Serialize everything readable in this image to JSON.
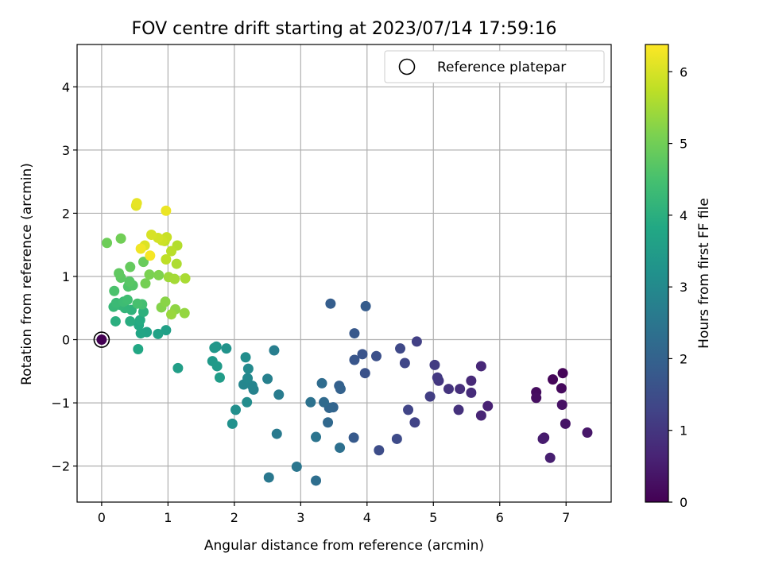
{
  "chart_data": {
    "type": "scatter",
    "title": "FOV centre drift starting at 2023/07/14 17:59:16",
    "xlabel": "Angular distance from reference (arcmin)",
    "ylabel": "Rotation from reference (arcmin)",
    "xlim": [
      -0.37,
      7.68
    ],
    "ylim": [
      -2.57,
      4.67
    ],
    "xticks": [
      0,
      1,
      2,
      3,
      4,
      5,
      6,
      7
    ],
    "yticks": [
      -2,
      -1,
      0,
      1,
      2,
      3,
      4
    ],
    "x_tick_labels": [
      "0",
      "1",
      "2",
      "3",
      "4",
      "5",
      "6",
      "7"
    ],
    "y_tick_labels": [
      "−2",
      "−1",
      "0",
      "1",
      "2",
      "3",
      "4"
    ],
    "grid": true,
    "legend_position": "top-right",
    "legend": [
      {
        "label": "Reference platepar",
        "marker": "open-circle"
      }
    ],
    "reference_point": {
      "x": 0,
      "y": 0
    },
    "colorbar": {
      "label": "Hours from first FF file",
      "min": 0,
      "max": 6.38,
      "ticks": [
        0,
        1,
        2,
        3,
        4,
        5,
        6
      ],
      "tick_labels": [
        "0",
        "1",
        "2",
        "3",
        "4",
        "5",
        "6"
      ],
      "colormap": "viridis"
    },
    "points": [
      [
        6.95,
        -0.53,
        0.05
      ],
      [
        6.8,
        -0.63,
        0.1
      ],
      [
        6.93,
        -0.77,
        0.15
      ],
      [
        6.55,
        -0.83,
        0.2
      ],
      [
        6.55,
        -0.92,
        0.25
      ],
      [
        6.94,
        -1.03,
        0.3
      ],
      [
        6.99,
        -1.33,
        0.35
      ],
      [
        7.32,
        -1.47,
        0.4
      ],
      [
        6.67,
        -1.55,
        0.45
      ],
      [
        6.65,
        -1.57,
        0.5
      ],
      [
        6.76,
        -1.87,
        0.55
      ],
      [
        5.82,
        -1.05,
        0.6
      ],
      [
        5.72,
        -1.2,
        0.65
      ],
      [
        5.72,
        -0.42,
        0.7
      ],
      [
        5.57,
        -0.65,
        0.75
      ],
      [
        5.57,
        -0.84,
        0.8
      ],
      [
        5.4,
        -0.78,
        0.85
      ],
      [
        5.38,
        -1.11,
        0.9
      ],
      [
        5.23,
        -0.78,
        0.95
      ],
      [
        5.08,
        -0.65,
        1.0
      ],
      [
        5.06,
        -0.6,
        1.05
      ],
      [
        5.02,
        -0.4,
        1.1
      ],
      [
        4.95,
        -0.9,
        1.15
      ],
      [
        4.75,
        -0.03,
        1.2
      ],
      [
        4.72,
        -1.31,
        1.25
      ],
      [
        4.62,
        -1.11,
        1.3
      ],
      [
        4.57,
        -0.37,
        1.35
      ],
      [
        4.5,
        -0.14,
        1.4
      ],
      [
        4.45,
        -1.57,
        1.45
      ],
      [
        4.18,
        -1.75,
        1.5
      ],
      [
        4.14,
        -0.26,
        1.55
      ],
      [
        3.97,
        -0.53,
        1.6
      ],
      [
        3.93,
        -0.23,
        1.65
      ],
      [
        3.81,
        -0.32,
        1.7
      ],
      [
        3.81,
        0.1,
        1.75
      ],
      [
        3.8,
        -1.55,
        1.8
      ],
      [
        3.98,
        0.53,
        1.85
      ],
      [
        3.45,
        0.57,
        1.9
      ],
      [
        3.58,
        -0.73,
        1.95
      ],
      [
        3.6,
        -0.78,
        2.0
      ],
      [
        3.49,
        -1.07,
        2.05
      ],
      [
        3.43,
        -1.08,
        2.1
      ],
      [
        3.41,
        -1.31,
        2.15
      ],
      [
        3.35,
        -0.99,
        2.2
      ],
      [
        3.32,
        -0.69,
        2.25
      ],
      [
        3.23,
        -2.23,
        2.3
      ],
      [
        3.59,
        -1.71,
        2.35
      ],
      [
        3.15,
        -0.99,
        2.4
      ],
      [
        3.23,
        -1.54,
        2.45
      ],
      [
        2.94,
        -2.01,
        2.5
      ],
      [
        2.52,
        -2.18,
        2.55
      ],
      [
        2.64,
        -1.49,
        2.6
      ],
      [
        2.67,
        -0.87,
        2.65
      ],
      [
        2.6,
        -0.17,
        2.7
      ],
      [
        2.5,
        -0.62,
        2.75
      ],
      [
        2.29,
        -0.79,
        2.8
      ],
      [
        2.27,
        -0.73,
        2.85
      ],
      [
        2.14,
        -0.71,
        2.9
      ],
      [
        2.2,
        -0.61,
        2.95
      ],
      [
        2.21,
        -0.46,
        3.0
      ],
      [
        2.19,
        -0.99,
        3.05
      ],
      [
        2.17,
        -0.28,
        3.1
      ],
      [
        2.02,
        -1.11,
        3.15
      ],
      [
        1.97,
        -1.33,
        3.2
      ],
      [
        1.88,
        -0.14,
        3.25
      ],
      [
        1.73,
        -0.11,
        3.3
      ],
      [
        1.7,
        -0.13,
        3.35
      ],
      [
        1.67,
        -0.34,
        3.4
      ],
      [
        1.74,
        -0.42,
        3.45
      ],
      [
        1.78,
        -0.6,
        3.5
      ],
      [
        1.15,
        -0.45,
        3.55
      ],
      [
        0.97,
        0.15,
        3.6
      ],
      [
        0.85,
        0.09,
        3.65
      ],
      [
        0.68,
        0.12,
        3.7
      ],
      [
        0.59,
        0.1,
        3.75
      ],
      [
        0.55,
        -0.15,
        3.8
      ],
      [
        0.56,
        0.23,
        3.85
      ],
      [
        0.58,
        0.31,
        3.9
      ],
      [
        0.43,
        0.29,
        3.95
      ],
      [
        0.21,
        0.29,
        4.0
      ],
      [
        0.63,
        0.44,
        4.05
      ],
      [
        0.45,
        0.47,
        4.1
      ],
      [
        0.35,
        0.5,
        4.15
      ],
      [
        0.28,
        0.55,
        4.2
      ],
      [
        0.18,
        0.52,
        4.25
      ],
      [
        0.22,
        0.58,
        4.3
      ],
      [
        0.33,
        0.6,
        4.35
      ],
      [
        0.39,
        0.63,
        4.4
      ],
      [
        0.61,
        0.56,
        4.45
      ],
      [
        0.54,
        0.57,
        4.5
      ],
      [
        0.19,
        0.77,
        4.55
      ],
      [
        0.4,
        0.84,
        4.6
      ],
      [
        0.47,
        0.86,
        4.65
      ],
      [
        0.42,
        0.92,
        4.7
      ],
      [
        0.29,
        0.98,
        4.75
      ],
      [
        0.26,
        1.05,
        4.8
      ],
      [
        0.43,
        1.15,
        4.85
      ],
      [
        0.63,
        1.23,
        4.9
      ],
      [
        0.08,
        1.53,
        4.95
      ],
      [
        0.29,
        1.6,
        5.0
      ],
      [
        0.66,
        0.89,
        5.05
      ],
      [
        0.72,
        1.03,
        5.1
      ],
      [
        0.86,
        1.02,
        5.15
      ],
      [
        0.9,
        0.51,
        5.2
      ],
      [
        0.96,
        0.6,
        5.25
      ],
      [
        1.11,
        0.48,
        5.3
      ],
      [
        1.25,
        0.42,
        5.35
      ],
      [
        1.05,
        0.4,
        5.4
      ],
      [
        1.01,
        0.99,
        5.45
      ],
      [
        1.1,
        0.96,
        5.5
      ],
      [
        1.26,
        0.97,
        5.55
      ],
      [
        1.13,
        1.2,
        5.6
      ],
      [
        1.14,
        1.49,
        5.65
      ],
      [
        1.05,
        1.4,
        5.7
      ],
      [
        0.97,
        1.27,
        5.75
      ],
      [
        0.95,
        1.56,
        5.8
      ],
      [
        0.98,
        1.62,
        5.85
      ],
      [
        0.91,
        1.57,
        5.9
      ],
      [
        0.85,
        1.61,
        5.95
      ],
      [
        0.75,
        1.66,
        6.0
      ],
      [
        0.65,
        1.49,
        6.05
      ],
      [
        0.52,
        2.12,
        6.1
      ],
      [
        0.53,
        2.16,
        6.15
      ],
      [
        0.97,
        2.04,
        6.2
      ],
      [
        0.59,
        1.44,
        6.25
      ],
      [
        0.73,
        1.33,
        6.3
      ]
    ],
    "points_note": ""
  }
}
